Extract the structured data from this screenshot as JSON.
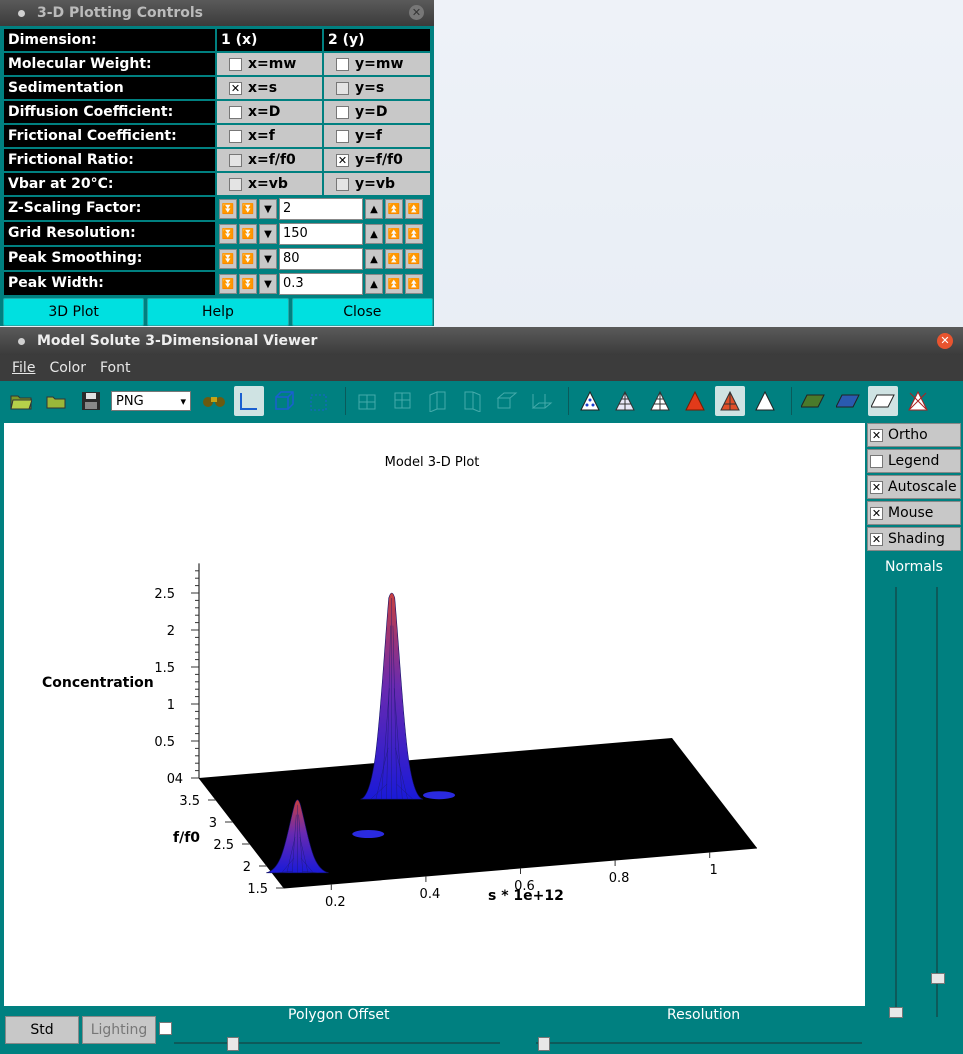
{
  "controls": {
    "title": "3-D Plotting Controls",
    "header": {
      "label": "Dimension:",
      "col_x": "1 (x)",
      "col_y": "2 (y)"
    },
    "rows": [
      {
        "label": "Molecular Weight:",
        "x": "x=mw",
        "y": "y=mw",
        "x_checked": false,
        "y_checked": false
      },
      {
        "label": "Sedimentation Coefficient:",
        "x": "x=s",
        "y": "y=s",
        "x_checked": true,
        "y_checked": false
      },
      {
        "label": "Diffusion Coefficient:",
        "x": "x=D",
        "y": "y=D",
        "x_checked": false,
        "y_checked": false
      },
      {
        "label": "Frictional Coefficient:",
        "x": "x=f",
        "y": "y=f",
        "x_checked": false,
        "y_checked": false
      },
      {
        "label": "Frictional Ratio:",
        "x": "x=f/f0",
        "y": "y=f/f0",
        "x_checked": false,
        "y_checked": true
      },
      {
        "label": "Vbar at 20°C:",
        "x": "x=vb",
        "y": "y=vb",
        "x_checked": false,
        "y_checked": false
      }
    ],
    "counters": [
      {
        "label": "Z-Scaling Factor:",
        "value": "2"
      },
      {
        "label": "Grid Resolution:",
        "value": "150"
      },
      {
        "label": "Peak Smoothing:",
        "value": "80"
      },
      {
        "label": "Peak Width:",
        "value": "0.3"
      }
    ],
    "buttons": {
      "plot": "3D Plot",
      "help": "Help",
      "close": "Close"
    }
  },
  "viewer": {
    "title": "Model Solute 3-Dimensional Viewer",
    "menu": {
      "file": "File",
      "color": "Color",
      "font": "Font"
    },
    "format": "PNG",
    "side": {
      "ortho": "Ortho",
      "legend": "Legend",
      "autoscale": "Autoscale",
      "mouse": "Mouse",
      "shading": "Shading",
      "normals": "Normals"
    },
    "bottom": {
      "std": "Std",
      "lighting": "Lighting",
      "polygon_offset": "Polygon Offset",
      "resolution": "Resolution"
    }
  },
  "chart_data": {
    "type": "surface",
    "title": "Model 3-D Plot",
    "xlabel": "s * 1e+12",
    "ylabel": "f/f0",
    "zlabel": "Concentration",
    "x_ticks": [
      "0.2",
      "0.4",
      "0.6",
      "0.8",
      "1"
    ],
    "y_ticks": [
      "1.5",
      "2",
      "2.5",
      "3",
      "3.5",
      "4"
    ],
    "z_ticks": [
      "0",
      "0.5",
      "1",
      "1.5",
      "2",
      "2.5"
    ],
    "peaks": [
      {
        "s": 0.15,
        "ff0": 1.8,
        "height": 1.0
      },
      {
        "s": 0.45,
        "ff0": 3.2,
        "height": 2.8
      },
      {
        "s": 0.55,
        "ff0": 3.2,
        "height": 0.05
      },
      {
        "s": 0.35,
        "ff0": 2.5,
        "height": 0.02
      }
    ]
  }
}
